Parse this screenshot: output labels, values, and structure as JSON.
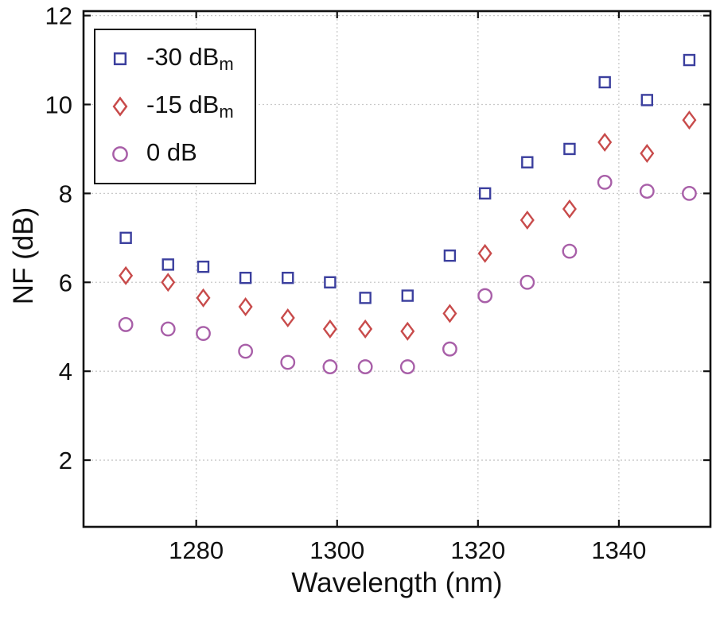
{
  "chart_data": {
    "type": "scatter",
    "title": "",
    "xlabel": "Wavelength (nm)",
    "ylabel": "NF (dB)",
    "xlim": [
      1264,
      1353
    ],
    "ylim": [
      0.5,
      12.1
    ],
    "x_ticks": [
      1280,
      1300,
      1320,
      1340
    ],
    "y_ticks": [
      2,
      4,
      6,
      8,
      10,
      12
    ],
    "grid": true,
    "legend_position": "top-left",
    "x": [
      1270,
      1276,
      1281,
      1287,
      1293,
      1299,
      1304,
      1310,
      1316,
      1321,
      1327,
      1333,
      1338,
      1344,
      1350
    ],
    "series": [
      {
        "name": "-30 dBm",
        "label_main": "-30 dB",
        "label_sub": "m",
        "marker": "square",
        "color": "#3b3f9e",
        "values": [
          7.0,
          6.4,
          6.35,
          6.1,
          6.1,
          6.0,
          5.65,
          5.7,
          6.6,
          8.0,
          8.7,
          9.0,
          10.5,
          10.1,
          11.0
        ]
      },
      {
        "name": "-15 dBm",
        "label_main": "-15 dB",
        "label_sub": "m",
        "marker": "diamond",
        "color": "#c84b4b",
        "values": [
          6.15,
          6.0,
          5.65,
          5.45,
          5.2,
          4.95,
          4.95,
          4.9,
          5.3,
          6.65,
          7.4,
          7.65,
          9.15,
          8.9,
          9.65
        ]
      },
      {
        "name": "0 dB",
        "label_main": "0 dB",
        "label_sub": "",
        "marker": "circle",
        "color": "#a85fa8",
        "values": [
          5.05,
          4.95,
          4.85,
          4.45,
          4.2,
          4.1,
          4.1,
          4.1,
          4.5,
          5.7,
          6.0,
          6.7,
          8.25,
          8.05,
          8.0
        ]
      }
    ],
    "style": {
      "grid_color": "#c9c9c9",
      "border_color": "#111111",
      "marker_fill": "#ffffff"
    }
  }
}
